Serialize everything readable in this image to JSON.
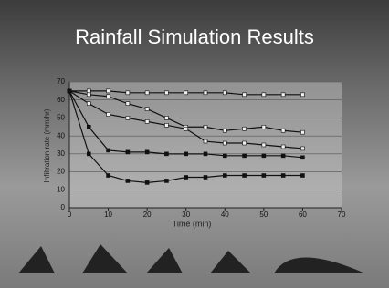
{
  "chart_data": {
    "type": "line",
    "title": "Rainfall Simulation Results",
    "x_label": "Time (min)",
    "y_label": "Infiltration rate (mm/hr)",
    "x": [
      0,
      5,
      10,
      15,
      20,
      25,
      30,
      35,
      40,
      45,
      50,
      55,
      60
    ],
    "series": [
      {
        "color": "#f0f0f0",
        "values": [
          65,
          65,
          65,
          64,
          64,
          64,
          64,
          64,
          64,
          63,
          63,
          63,
          63
        ]
      },
      {
        "color": "#f0f0f0",
        "values": [
          65,
          63,
          62,
          58,
          55,
          50,
          45,
          45,
          43,
          44,
          45,
          43,
          42
        ]
      },
      {
        "color": "#f0f0f0",
        "values": [
          65,
          58,
          52,
          50,
          48,
          46,
          44,
          37,
          36,
          36,
          35,
          34,
          33
        ]
      },
      {
        "color": "#111111",
        "values": [
          65,
          45,
          32,
          31,
          31,
          30,
          30,
          30,
          29,
          29,
          29,
          29,
          28
        ]
      },
      {
        "color": "#111111",
        "values": [
          65,
          30,
          18,
          15,
          14,
          15,
          17,
          17,
          18,
          18,
          18,
          18,
          18
        ]
      }
    ],
    "xlim": [
      0,
      70
    ],
    "xticks": [
      0,
      10,
      20,
      30,
      40,
      50,
      60,
      70
    ],
    "ylim": [
      0,
      70
    ],
    "yticks": [
      0,
      10,
      20,
      30,
      40,
      50,
      60,
      70
    ],
    "grid": true
  }
}
